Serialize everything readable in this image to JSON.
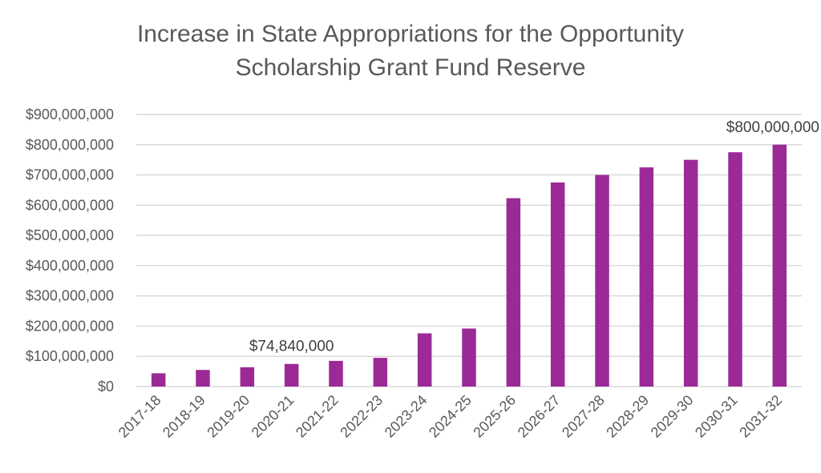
{
  "chart_data": {
    "type": "bar",
    "title_lines": [
      "Increase in State Appropriations for the Opportunity",
      "Scholarship Grant Fund Reserve"
    ],
    "xlabel": "",
    "ylabel": "",
    "categories": [
      "2017-18",
      "2018-19",
      "2019-20",
      "2020-21",
      "2021-22",
      "2022-23",
      "2023-24",
      "2024-25",
      "2025-26",
      "2026-27",
      "2027-28",
      "2028-29",
      "2029-30",
      "2030-31",
      "2031-32"
    ],
    "values": [
      44000000,
      55000000,
      64000000,
      74840000,
      85000000,
      95000000,
      176000000,
      192000000,
      623000000,
      675000000,
      700000000,
      725000000,
      750000000,
      775000000,
      800000000
    ],
    "ylim": [
      0,
      900000000
    ],
    "y_ticks": [
      "$0",
      "$100,000,000",
      "$200,000,000",
      "$300,000,000",
      "$400,000,000",
      "$500,000,000",
      "$600,000,000",
      "$700,000,000",
      "$800,000,000",
      "$900,000,000"
    ],
    "data_labels": [
      {
        "category": "2020-21",
        "text": "$74,840,000"
      },
      {
        "category": "2031-32",
        "text": "$800,000,000"
      }
    ],
    "grid": true,
    "legend": "none",
    "bar_color": "#9B2A96",
    "grid_color": "#d9d9d9",
    "text_color": "#595959"
  }
}
